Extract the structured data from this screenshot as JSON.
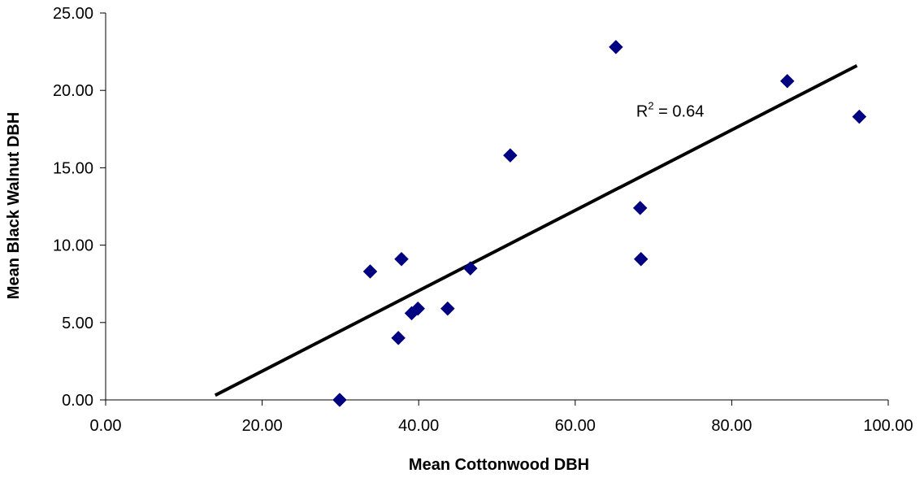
{
  "chart_data": {
    "type": "scatter",
    "title": "",
    "xlabel": "Mean Cottonwood DBH",
    "ylabel": "Mean Black Walnut DBH",
    "xlim": [
      0,
      100
    ],
    "ylim": [
      0,
      25
    ],
    "x_ticks": [
      "0.00",
      "20.00",
      "40.00",
      "60.00",
      "80.00",
      "100.00"
    ],
    "y_ticks": [
      "0.00",
      "5.00",
      "10.00",
      "15.00",
      "20.00",
      "25.00"
    ],
    "grid": false,
    "legend": "none",
    "marker_color": "#000080",
    "marker_shape": "diamond",
    "points": [
      {
        "x": 29.9,
        "y": 0.0
      },
      {
        "x": 33.8,
        "y": 8.3
      },
      {
        "x": 37.4,
        "y": 4.0
      },
      {
        "x": 37.8,
        "y": 9.1
      },
      {
        "x": 39.1,
        "y": 5.6
      },
      {
        "x": 39.9,
        "y": 5.9
      },
      {
        "x": 43.7,
        "y": 5.9
      },
      {
        "x": 46.6,
        "y": 8.5
      },
      {
        "x": 51.7,
        "y": 15.8
      },
      {
        "x": 65.2,
        "y": 22.8
      },
      {
        "x": 68.3,
        "y": 12.4
      },
      {
        "x": 68.4,
        "y": 9.1
      },
      {
        "x": 87.1,
        "y": 20.6
      },
      {
        "x": 96.3,
        "y": 18.3
      }
    ],
    "trendline": {
      "type": "linear",
      "color": "#000000",
      "x_start": 14.0,
      "y_start": 0.3,
      "x_end": 96.0,
      "y_end": 21.6
    },
    "annotation": {
      "base": "R",
      "superscript": "2",
      "rest": " = 0.64",
      "x": 67.8,
      "y": 18.3
    }
  }
}
